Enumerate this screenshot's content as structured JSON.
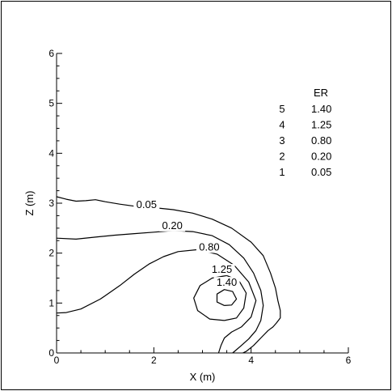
{
  "chart_data": {
    "type": "contour",
    "xlabel": "X (m)",
    "ylabel": "Z (m)",
    "xlim": [
      0,
      6
    ],
    "ylim": [
      0,
      6
    ],
    "xticks": [
      "0",
      "2",
      "4",
      "6"
    ],
    "yticks": [
      "0",
      "1",
      "2",
      "3",
      "4",
      "5",
      "6"
    ],
    "legend": {
      "title": "ER",
      "position": "top-right",
      "entries": [
        {
          "level": "5",
          "value": "1.40"
        },
        {
          "level": "4",
          "value": "1.25"
        },
        {
          "level": "3",
          "value": "0.80"
        },
        {
          "level": "2",
          "value": "0.20"
        },
        {
          "level": "1",
          "value": "0.05"
        }
      ]
    },
    "contours": [
      {
        "label": "0.05",
        "label_at": [
          1.85,
          2.92
        ],
        "points": [
          [
            0,
            3.13
          ],
          [
            0.2,
            3.08
          ],
          [
            0.4,
            3.04
          ],
          [
            0.6,
            3.05
          ],
          [
            0.8,
            3.07
          ],
          [
            1.0,
            3.03
          ],
          [
            1.3,
            2.98
          ],
          [
            1.6,
            2.94
          ],
          [
            2.0,
            2.91
          ],
          [
            2.4,
            2.87
          ],
          [
            2.8,
            2.8
          ],
          [
            3.2,
            2.68
          ],
          [
            3.6,
            2.5
          ],
          [
            4.0,
            2.22
          ],
          [
            4.25,
            1.95
          ],
          [
            4.4,
            1.6
          ],
          [
            4.5,
            1.3
          ],
          [
            4.55,
            1.05
          ],
          [
            4.6,
            0.85
          ],
          [
            4.6,
            0.7
          ],
          [
            4.52,
            0.6
          ],
          [
            4.45,
            0.52
          ],
          [
            4.35,
            0.45
          ],
          [
            4.2,
            0.3
          ],
          [
            4.05,
            0.15
          ],
          [
            3.9,
            0.03
          ],
          [
            3.83,
            0
          ]
        ]
      },
      {
        "label": "0.20",
        "label_at": [
          2.38,
          2.5
        ],
        "points": [
          [
            0,
            2.3
          ],
          [
            0.4,
            2.28
          ],
          [
            0.8,
            2.32
          ],
          [
            1.2,
            2.36
          ],
          [
            1.6,
            2.39
          ],
          [
            2.0,
            2.42
          ],
          [
            2.4,
            2.45
          ],
          [
            2.8,
            2.43
          ],
          [
            3.2,
            2.35
          ],
          [
            3.55,
            2.17
          ],
          [
            3.85,
            1.9
          ],
          [
            4.05,
            1.6
          ],
          [
            4.2,
            1.25
          ],
          [
            4.25,
            0.95
          ],
          [
            4.2,
            0.65
          ],
          [
            4.1,
            0.45
          ],
          [
            3.95,
            0.28
          ],
          [
            3.8,
            0.15
          ],
          [
            3.67,
            0.04
          ],
          [
            3.62,
            0
          ]
        ]
      },
      {
        "label": "0.80",
        "label_at": [
          3.14,
          2.07
        ],
        "points": [
          [
            0,
            0.8
          ],
          [
            0.2,
            0.81
          ],
          [
            0.5,
            0.88
          ],
          [
            0.9,
            1.08
          ],
          [
            1.3,
            1.35
          ],
          [
            1.6,
            1.58
          ],
          [
            1.9,
            1.78
          ],
          [
            2.2,
            1.93
          ],
          [
            2.5,
            2.03
          ],
          [
            2.9,
            2.07
          ],
          [
            3.3,
            1.98
          ],
          [
            3.65,
            1.76
          ],
          [
            3.95,
            1.42
          ],
          [
            4.1,
            1.05
          ],
          [
            4.0,
            0.72
          ],
          [
            3.8,
            0.52
          ],
          [
            3.6,
            0.42
          ],
          [
            3.45,
            0.3
          ],
          [
            3.38,
            0.15
          ],
          [
            3.33,
            0
          ]
        ]
      },
      {
        "label": "1.25",
        "label_at": [
          3.4,
          1.62
        ],
        "points": [
          [
            3.45,
            0.65
          ],
          [
            3.15,
            0.68
          ],
          [
            2.9,
            0.85
          ],
          [
            2.82,
            1.1
          ],
          [
            2.95,
            1.35
          ],
          [
            3.2,
            1.5
          ],
          [
            3.5,
            1.55
          ],
          [
            3.75,
            1.45
          ],
          [
            3.9,
            1.2
          ],
          [
            3.85,
            0.9
          ],
          [
            3.7,
            0.7
          ],
          [
            3.45,
            0.65
          ]
        ]
      },
      {
        "label": "1.40",
        "label_at": [
          3.5,
          1.36
        ],
        "points": [
          [
            3.45,
            0.95
          ],
          [
            3.3,
            1.02
          ],
          [
            3.3,
            1.18
          ],
          [
            3.45,
            1.27
          ],
          [
            3.62,
            1.23
          ],
          [
            3.7,
            1.08
          ],
          [
            3.6,
            0.96
          ],
          [
            3.45,
            0.95
          ]
        ]
      }
    ]
  }
}
